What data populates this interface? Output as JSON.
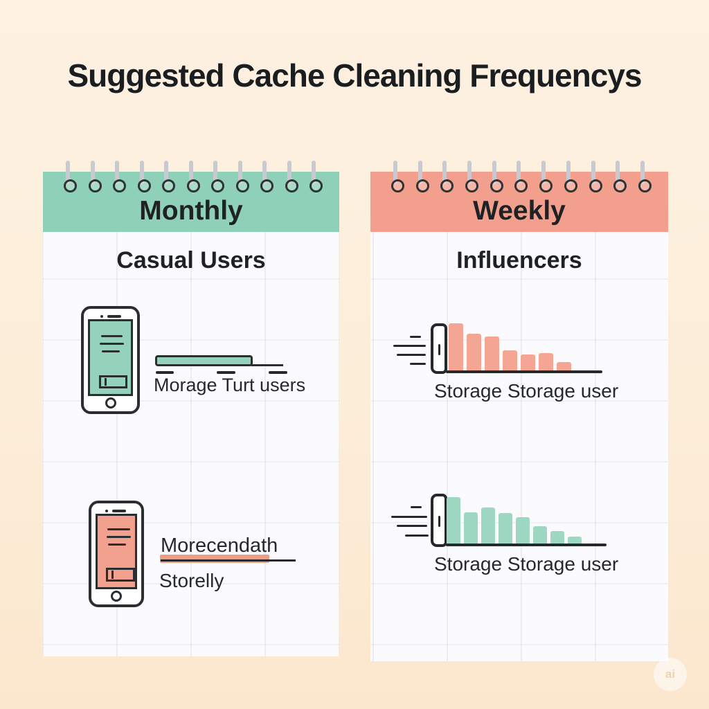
{
  "title": "Suggested Cache Cleaning Frequencys",
  "palette": {
    "background": "#fdeeda",
    "card": "#fbfbfd",
    "teal_header": "#8ed0b8",
    "coral_header": "#f2a08d",
    "teal_fill": "#94d2bb",
    "coral_fill": "#f5a593",
    "coral_highlight": "#ef9c84",
    "ink": "#26292c"
  },
  "cards": [
    {
      "header": "Monthly",
      "subtitle": "Casual Users",
      "items": [
        {
          "icon": "phone-icon",
          "label": "Morage Turt users"
        },
        {
          "icon": "phone-icon",
          "label": "Morecendath",
          "sublabel": "Storelly"
        }
      ]
    },
    {
      "header": "Weekly",
      "subtitle": "Influencers",
      "items": [
        {
          "icon": "speeding-phone-bar-chart-icon",
          "label": "Storage Storage user"
        },
        {
          "icon": "speeding-phone-bar-chart-icon",
          "label": "Storage Storage user"
        }
      ]
    }
  ],
  "chart_data": [
    {
      "type": "bar",
      "name": "weekly-top-decay",
      "values": [
        70,
        55,
        51,
        31,
        25,
        27,
        14
      ],
      "color": "#f5a593"
    },
    {
      "type": "bar",
      "name": "weekly-bottom-decay",
      "values": [
        69,
        47,
        54,
        46,
        40,
        27,
        20,
        12
      ],
      "color": "#9ed8c2"
    }
  ],
  "watermark": {
    "label": "ai"
  }
}
